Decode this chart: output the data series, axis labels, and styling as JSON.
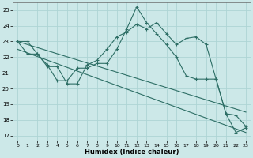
{
  "xlabel": "Humidex (Indice chaleur)",
  "bg_color": "#cce8e8",
  "grid_color": "#aed4d4",
  "line_color": "#2d6e65",
  "xlim": [
    -0.5,
    23.5
  ],
  "ylim": [
    16.7,
    25.5
  ],
  "yticks": [
    17,
    18,
    19,
    20,
    21,
    22,
    23,
    24,
    25
  ],
  "xticks": [
    0,
    1,
    2,
    3,
    4,
    5,
    6,
    7,
    8,
    9,
    10,
    11,
    12,
    13,
    14,
    15,
    16,
    17,
    18,
    19,
    20,
    21,
    22,
    23
  ],
  "line1_x": [
    0,
    1,
    2,
    3,
    4,
    5,
    6,
    7,
    8,
    9,
    10,
    11,
    12,
    13,
    14,
    15,
    16,
    17,
    18,
    19,
    20,
    21,
    22,
    23
  ],
  "line1_y": [
    23.0,
    23.0,
    22.2,
    21.4,
    21.4,
    20.3,
    20.3,
    21.5,
    21.8,
    22.5,
    23.3,
    23.6,
    24.1,
    23.8,
    24.2,
    23.5,
    22.8,
    23.2,
    23.3,
    22.8,
    20.6,
    18.4,
    18.3,
    17.6
  ],
  "line2_x": [
    0,
    1,
    2,
    3,
    4,
    5,
    6,
    7,
    8,
    9,
    10,
    11,
    12,
    13,
    14,
    15,
    16,
    17,
    18,
    19,
    20,
    21,
    22,
    23
  ],
  "line2_y": [
    23.0,
    22.2,
    22.2,
    21.5,
    20.5,
    20.5,
    21.3,
    21.3,
    21.6,
    21.6,
    22.5,
    23.8,
    25.2,
    24.2,
    23.5,
    22.8,
    22.0,
    20.8,
    20.6,
    20.6,
    20.6,
    18.4,
    17.2,
    17.5
  ],
  "line3_x": [
    0,
    23
  ],
  "line3_y": [
    23.0,
    18.5
  ],
  "line4_x": [
    0,
    23
  ],
  "line4_y": [
    22.5,
    17.2
  ]
}
